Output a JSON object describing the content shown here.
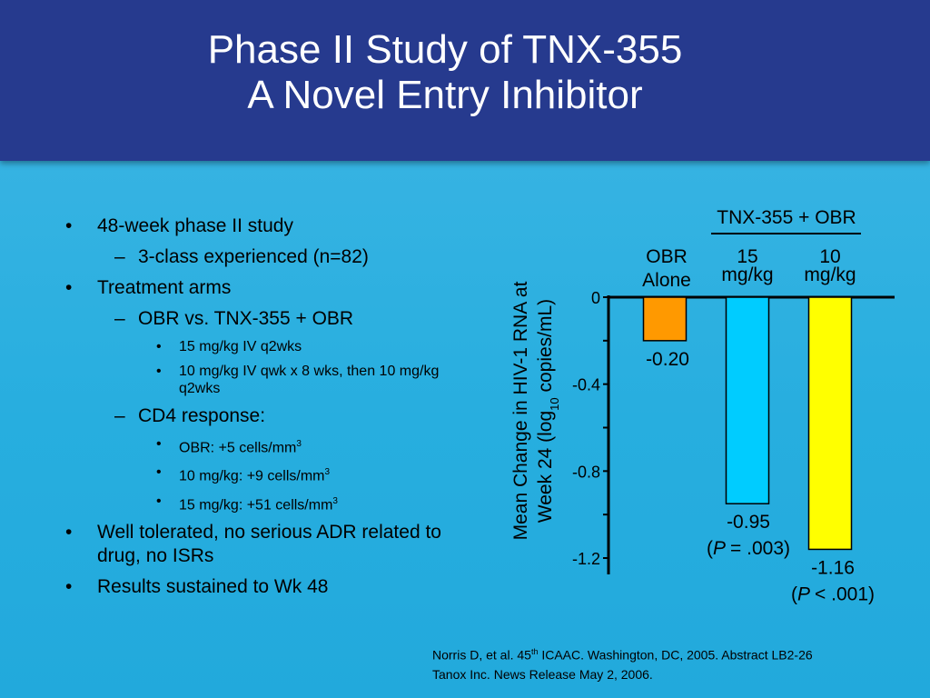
{
  "slide": {
    "title_line1": "Phase II Study of TNX-355",
    "title_line2": "A Novel Entry Inhibitor"
  },
  "bullets": {
    "b1": "48-week phase II study",
    "b1_sub1": "3-class experienced (n=82)",
    "b2": "Treatment arms",
    "b2_sub1": "OBR vs. TNX-355 + OBR",
    "b2_sub1_i1": "15 mg/kg IV q2wks",
    "b2_sub1_i2": "10 mg/kg IV qwk x 8 wks, then 10 mg/kg q2wks",
    "b2_sub2": "CD4 response:",
    "b2_sub2_i1": "OBR: +5 cells/mm",
    "b2_sub2_i1_sup": "3",
    "b2_sub2_i2": "10 mg/kg: +9 cells/mm",
    "b2_sub2_i2_sup": "3",
    "b2_sub2_i3": "15 mg/kg:  +51 cells/mm",
    "b2_sub2_i3_sup": "3",
    "b3": "Well tolerated, no serious ADR related to drug, no ISRs",
    "b4": "Results sustained to Wk 48"
  },
  "chart_data": {
    "type": "bar",
    "group_label": "TNX-355 + OBR",
    "ylabel_line1": "Mean Change in HIV-1 RNA at",
    "ylabel_line2_pre": "Week 24  (log",
    "ylabel_line2_sub": "10",
    "ylabel_line2_post": " copies/mL)",
    "ylim": [
      -1.2,
      0
    ],
    "yticks": [
      {
        "value": 0,
        "label": "0"
      },
      {
        "value": -0.4,
        "label": "-0.4"
      },
      {
        "value": -0.8,
        "label": "-0.8"
      },
      {
        "value": -1.2,
        "label": "-1.2"
      }
    ],
    "categories": [
      {
        "line1": "OBR",
        "line2": "Alone"
      },
      {
        "line1": "15",
        "line2": "mg/kg"
      },
      {
        "line1": "10",
        "line2": "mg/kg"
      }
    ],
    "values": [
      -0.2,
      -0.95,
      -1.16
    ],
    "value_labels": [
      "-0.20",
      "-0.95",
      "-1.16"
    ],
    "p_values": [
      null,
      "= .003)",
      "< .001)"
    ],
    "colors": [
      "#ff9900",
      "#00ccff",
      "#ffff00"
    ]
  },
  "footer": {
    "line1_pre": "Norris D, et al. 45",
    "line1_sup": "th",
    "line1_post": " ICAAC. Washington, DC, 2005. Abstract LB2-26",
    "line2": "Tanox Inc. News Release May 2, 2006."
  }
}
